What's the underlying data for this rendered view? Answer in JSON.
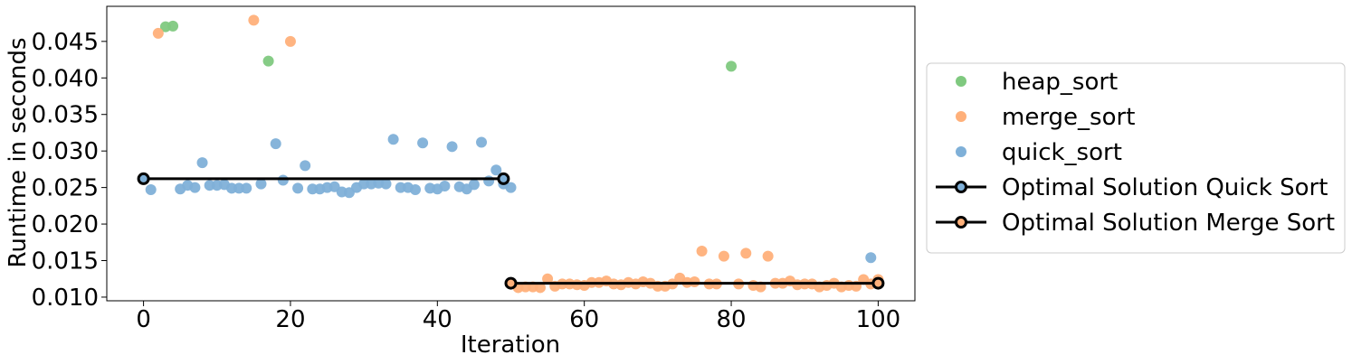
{
  "chart_data": {
    "type": "scatter",
    "xlabel": "Iteration",
    "ylabel": "Runtime in seconds",
    "xlim": [
      -5,
      105
    ],
    "ylim": [
      0.0095,
      0.0498
    ],
    "x_ticks": [
      0,
      20,
      40,
      60,
      80,
      100
    ],
    "x_tick_labels": [
      "0",
      "20",
      "40",
      "60",
      "80",
      "100"
    ],
    "y_ticks": [
      0.01,
      0.015,
      0.02,
      0.025,
      0.03,
      0.035,
      0.04,
      0.045
    ],
    "y_tick_labels": [
      "0.010",
      "0.015",
      "0.020",
      "0.025",
      "0.030",
      "0.035",
      "0.040",
      "0.045"
    ],
    "grid": false,
    "legend_position": "outside-right",
    "series": [
      {
        "name": "heap_sort",
        "kind": "scatter",
        "color": "#7fc97f",
        "points": [
          [
            3,
            0.047
          ],
          [
            4,
            0.0471
          ],
          [
            17,
            0.0423
          ],
          [
            80,
            0.0416
          ]
        ]
      },
      {
        "name": "merge_sort",
        "kind": "scatter",
        "color": "#ffb07a",
        "points": [
          [
            2,
            0.0461
          ],
          [
            15,
            0.0479
          ],
          [
            20,
            0.045
          ],
          [
            50,
            0.0119
          ],
          [
            51,
            0.0113
          ],
          [
            52,
            0.0114
          ],
          [
            53,
            0.0114
          ],
          [
            54,
            0.0113
          ],
          [
            55,
            0.0125
          ],
          [
            56,
            0.0115
          ],
          [
            57,
            0.0118
          ],
          [
            58,
            0.0118
          ],
          [
            59,
            0.0117
          ],
          [
            60,
            0.0116
          ],
          [
            61,
            0.012
          ],
          [
            62,
            0.012
          ],
          [
            63,
            0.0122
          ],
          [
            64,
            0.0118
          ],
          [
            65,
            0.0117
          ],
          [
            66,
            0.012
          ],
          [
            67,
            0.0118
          ],
          [
            68,
            0.0121
          ],
          [
            69,
            0.0119
          ],
          [
            70,
            0.0115
          ],
          [
            71,
            0.0115
          ],
          [
            72,
            0.0118
          ],
          [
            73,
            0.0126
          ],
          [
            74,
            0.012
          ],
          [
            75,
            0.0121
          ],
          [
            76,
            0.0163
          ],
          [
            77,
            0.0118
          ],
          [
            78,
            0.0118
          ],
          [
            79,
            0.0156
          ],
          [
            81,
            0.0118
          ],
          [
            82,
            0.016
          ],
          [
            83,
            0.0116
          ],
          [
            84,
            0.0114
          ],
          [
            85,
            0.0156
          ],
          [
            86,
            0.0119
          ],
          [
            87,
            0.0119
          ],
          [
            88,
            0.0122
          ],
          [
            89,
            0.0117
          ],
          [
            90,
            0.0118
          ],
          [
            91,
            0.0118
          ],
          [
            92,
            0.0114
          ],
          [
            93,
            0.0116
          ],
          [
            94,
            0.0119
          ],
          [
            95,
            0.0114
          ],
          [
            96,
            0.0116
          ],
          [
            97,
            0.0115
          ],
          [
            98,
            0.0124
          ],
          [
            99,
            0.0118
          ],
          [
            100,
            0.0124
          ]
        ]
      },
      {
        "name": "quick_sort",
        "kind": "scatter",
        "color": "#7fb0d8",
        "points": [
          [
            0,
            0.0262
          ],
          [
            1,
            0.0247
          ],
          [
            5,
            0.0248
          ],
          [
            6,
            0.0253
          ],
          [
            7,
            0.025
          ],
          [
            8,
            0.0284
          ],
          [
            9,
            0.0253
          ],
          [
            10,
            0.0253
          ],
          [
            11,
            0.0254
          ],
          [
            12,
            0.0249
          ],
          [
            13,
            0.0249
          ],
          [
            14,
            0.0249
          ],
          [
            16,
            0.0255
          ],
          [
            18,
            0.031
          ],
          [
            19,
            0.026
          ],
          [
            21,
            0.0249
          ],
          [
            22,
            0.028
          ],
          [
            23,
            0.0248
          ],
          [
            24,
            0.0248
          ],
          [
            25,
            0.025
          ],
          [
            26,
            0.0251
          ],
          [
            27,
            0.0244
          ],
          [
            28,
            0.0243
          ],
          [
            29,
            0.025
          ],
          [
            30,
            0.0255
          ],
          [
            31,
            0.0255
          ],
          [
            32,
            0.0256
          ],
          [
            33,
            0.0255
          ],
          [
            34,
            0.0316
          ],
          [
            35,
            0.025
          ],
          [
            36,
            0.025
          ],
          [
            37,
            0.0247
          ],
          [
            38,
            0.0311
          ],
          [
            39,
            0.0249
          ],
          [
            40,
            0.0248
          ],
          [
            41,
            0.0252
          ],
          [
            42,
            0.0306
          ],
          [
            43,
            0.0251
          ],
          [
            44,
            0.0248
          ],
          [
            45,
            0.0254
          ],
          [
            46,
            0.0312
          ],
          [
            47,
            0.0259
          ],
          [
            48,
            0.0274
          ],
          [
            49,
            0.0255
          ],
          [
            50,
            0.025
          ],
          [
            99,
            0.0154
          ]
        ]
      },
      {
        "name": "Optimal Solution Quick Sort",
        "kind": "line",
        "color": "#000000",
        "marker_face": "#7fb0d8",
        "points": [
          [
            0,
            0.0262
          ],
          [
            49,
            0.0262
          ]
        ]
      },
      {
        "name": "Optimal Solution Merge Sort",
        "kind": "line",
        "color": "#000000",
        "marker_face": "#ffb07a",
        "points": [
          [
            50,
            0.0119
          ],
          [
            100,
            0.0119
          ]
        ]
      }
    ]
  }
}
